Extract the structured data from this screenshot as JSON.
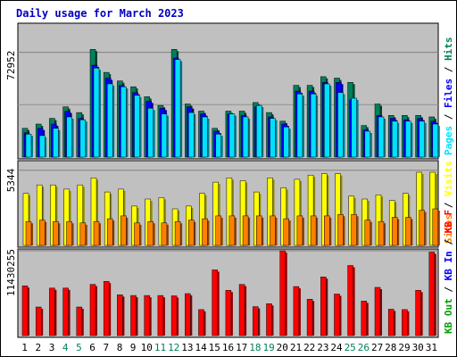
{
  "chart_data": {
    "type": "bar",
    "title": "Daily usage for March 2023",
    "categories": [
      "1",
      "2",
      "3",
      "4",
      "5",
      "6",
      "7",
      "8",
      "9",
      "10",
      "11",
      "12",
      "13",
      "14",
      "15",
      "16",
      "17",
      "18",
      "19",
      "20",
      "21",
      "22",
      "23",
      "24",
      "25",
      "26",
      "27",
      "28",
      "29",
      "30",
      "31"
    ],
    "weekend_days": [
      "4",
      "5",
      "11",
      "12",
      "18",
      "19",
      "25",
      "26"
    ],
    "panels": [
      {
        "id": "traffic",
        "max_label": "72952",
        "ymax": 92000,
        "legend": [
          {
            "text": "Hits",
            "color": "#00805c"
          },
          {
            "text": "Files",
            "color": "#0000ff"
          },
          {
            "text": "Pages",
            "color": "#00e0ff"
          }
        ],
        "series": [
          {
            "name": "Hits",
            "color": "#00805c",
            "values": [
              20000,
              23000,
              27000,
              35000,
              31000,
              75000,
              59000,
              53000,
              49000,
              42000,
              36000,
              75000,
              37000,
              32000,
              20000,
              32000,
              32000,
              38000,
              31000,
              25000,
              50000,
              50000,
              56000,
              55000,
              52000,
              22000,
              37000,
              29000,
              29000,
              29000,
              28000
            ]
          },
          {
            "name": "Files",
            "color": "#0000ff",
            "values": [
              17000,
              20000,
              23000,
              32000,
              27000,
              64000,
              55000,
              50000,
              45000,
              39000,
              34000,
              69000,
              35000,
              30000,
              18000,
              30000,
              29000,
              35000,
              28000,
              23000,
              46000,
              46000,
              52000,
              52000,
              40000,
              19000,
              29000,
              27000,
              26000,
              27000,
              25000
            ]
          },
          {
            "name": "Pages",
            "color": "#00e0ff",
            "values": [
              16000,
              15000,
              20000,
              28000,
              26000,
              62000,
              51000,
              49000,
              43000,
              34000,
              30000,
              68000,
              31000,
              28000,
              16000,
              30000,
              28000,
              36000,
              27000,
              21000,
              44000,
              44000,
              51000,
              45000,
              41000,
              18000,
              28000,
              25000,
              25000,
              25000,
              23000
            ]
          }
        ]
      },
      {
        "id": "visits",
        "max_label": "5344",
        "ymax": 5900,
        "legend": [
          {
            "text": "Visits",
            "color": "#ffff00"
          },
          {
            "text": "Sites",
            "color": "#ff8000"
          }
        ],
        "series": [
          {
            "name": "Visits",
            "color": "#ffff00",
            "values": [
              3700,
              4300,
              4300,
              4000,
              4300,
              4800,
              3800,
              4000,
              2800,
              3300,
              3400,
              2600,
              2800,
              3700,
              4500,
              4800,
              4600,
              3800,
              4800,
              4100,
              4700,
              5000,
              5100,
              5100,
              3500,
              3300,
              3600,
              3200,
              3700,
              5200,
              5200
            ]
          },
          {
            "name": "Sites",
            "color": "#ff8000",
            "values": [
              1700,
              1800,
              1700,
              1700,
              1600,
              1700,
              1900,
              2100,
              1600,
              1700,
              1600,
              1700,
              1800,
              1900,
              2100,
              2100,
              2100,
              2100,
              2100,
              1900,
              2100,
              2100,
              2100,
              2200,
              2200,
              1800,
              1700,
              2000,
              2000,
              2500,
              2600
            ]
          }
        ]
      },
      {
        "id": "volume",
        "max_label": "11430255",
        "ymax": 11430255,
        "legend": [
          {
            "text": "KB F",
            "color": "#ff0000"
          },
          {
            "text": "KB In",
            "color": "#0000ff"
          },
          {
            "text": "KB Out",
            "color": "#00a000"
          }
        ],
        "series": [
          {
            "name": "KB F",
            "color": "#ff0000",
            "values": [
              6700,
              3850,
              6400,
              6400,
              3850,
              6900,
              7300,
              5500,
              5400,
              5400,
              5400,
              5350,
              5650,
              3500,
              8850,
              6100,
              6900,
              3900,
              4300,
              11430,
              6600,
              4900,
              7900,
              5600,
              9450,
              4650,
              6500,
              3550,
              3500,
              6100,
              11250
            ]
          }
        ]
      }
    ]
  }
}
